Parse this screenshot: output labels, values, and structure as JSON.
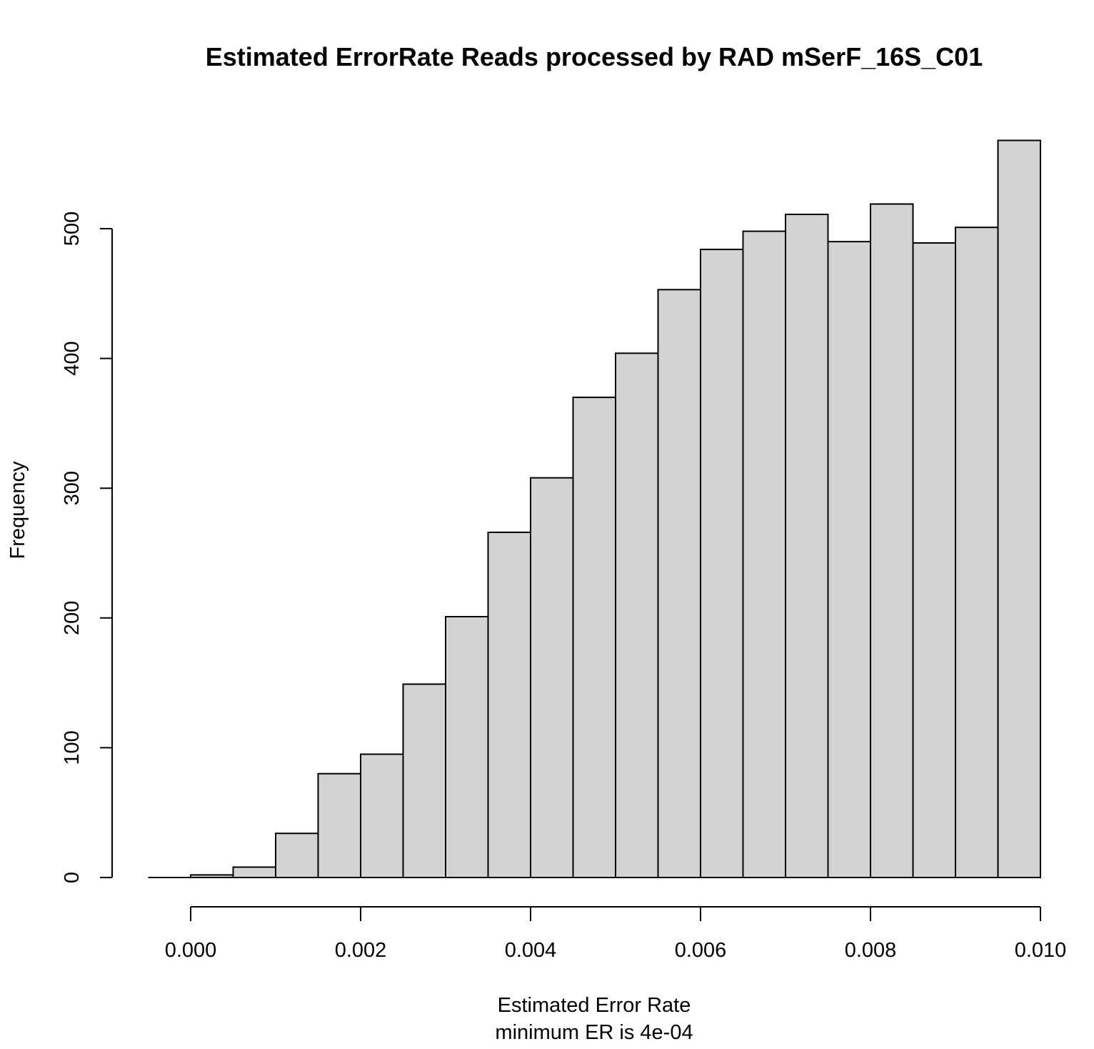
{
  "chart_data": {
    "type": "bar",
    "title": "Estimated ErrorRate Reads processed by RAD  mSerF_16S_C01",
    "xlabel": "Estimated Error Rate",
    "xlabel_sub": "minimum ER is 4e-04",
    "ylabel": "Frequency",
    "xlim": [
      -0.0005,
      0.01
    ],
    "ylim": [
      0,
      570
    ],
    "x_ticks": [
      "0.000",
      "0.002",
      "0.004",
      "0.006",
      "0.008",
      "0.010"
    ],
    "y_ticks": [
      "0",
      "100",
      "200",
      "300",
      "400",
      "500"
    ],
    "bin_width": 0.0005,
    "bins": [
      {
        "x0": -0.0005,
        "x1": 0.0,
        "count": 0
      },
      {
        "x0": 0.0,
        "x1": 0.0005,
        "count": 2
      },
      {
        "x0": 0.0005,
        "x1": 0.001,
        "count": 8
      },
      {
        "x0": 0.001,
        "x1": 0.0015,
        "count": 34
      },
      {
        "x0": 0.0015,
        "x1": 0.002,
        "count": 80
      },
      {
        "x0": 0.002,
        "x1": 0.0025,
        "count": 95
      },
      {
        "x0": 0.0025,
        "x1": 0.003,
        "count": 149
      },
      {
        "x0": 0.003,
        "x1": 0.0035,
        "count": 201
      },
      {
        "x0": 0.0035,
        "x1": 0.004,
        "count": 266
      },
      {
        "x0": 0.004,
        "x1": 0.0045,
        "count": 308
      },
      {
        "x0": 0.0045,
        "x1": 0.005,
        "count": 370
      },
      {
        "x0": 0.005,
        "x1": 0.0055,
        "count": 404
      },
      {
        "x0": 0.0055,
        "x1": 0.006,
        "count": 453
      },
      {
        "x0": 0.006,
        "x1": 0.0065,
        "count": 484
      },
      {
        "x0": 0.0065,
        "x1": 0.007,
        "count": 498
      },
      {
        "x0": 0.007,
        "x1": 0.0075,
        "count": 511
      },
      {
        "x0": 0.0075,
        "x1": 0.008,
        "count": 490
      },
      {
        "x0": 0.008,
        "x1": 0.0085,
        "count": 519
      },
      {
        "x0": 0.0085,
        "x1": 0.009,
        "count": 489
      },
      {
        "x0": 0.009,
        "x1": 0.0095,
        "count": 501
      },
      {
        "x0": 0.0095,
        "x1": 0.01,
        "count": 568
      }
    ],
    "bar_fill": "#d3d3d3",
    "grid": false
  }
}
